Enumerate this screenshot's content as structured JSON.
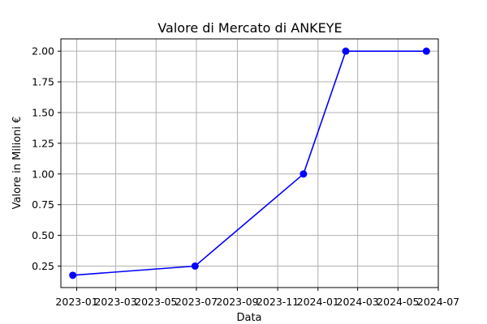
{
  "chart_data": {
    "type": "line",
    "title": "Valore di Mercato di ANKEYE",
    "xlabel": "Data",
    "ylabel": "Valore in Milioni €",
    "x": [
      "2022-12-26",
      "2023-06-29",
      "2023-12-10",
      "2024-02-12",
      "2024-06-13"
    ],
    "series": [
      {
        "values": [
          0.175,
          0.25,
          1.0,
          2.0,
          2.0
        ],
        "color": "#0000ff",
        "marker": "circle"
      }
    ],
    "xlim": [
      "2022-12-08",
      "2024-07-01"
    ],
    "ylim": [
      0.075,
      2.1
    ],
    "x_ticks": [
      "2023-01-01",
      "2023-03-01",
      "2023-05-01",
      "2023-07-01",
      "2023-09-01",
      "2023-11-01",
      "2024-01-01",
      "2024-03-01",
      "2024-05-01",
      "2024-07-01"
    ],
    "x_tick_labels": [
      "2023-01",
      "2023-03",
      "2023-05",
      "2023-07",
      "2023-09",
      "2023-11",
      "2024-01",
      "2024-03",
      "2024-05",
      "2024-07"
    ],
    "y_ticks": [
      0.25,
      0.5,
      0.75,
      1.0,
      1.25,
      1.5,
      1.75,
      2.0
    ],
    "y_tick_labels": [
      "0.25",
      "0.50",
      "0.75",
      "1.00",
      "1.25",
      "1.50",
      "1.75",
      "2.00"
    ],
    "grid": true
  }
}
